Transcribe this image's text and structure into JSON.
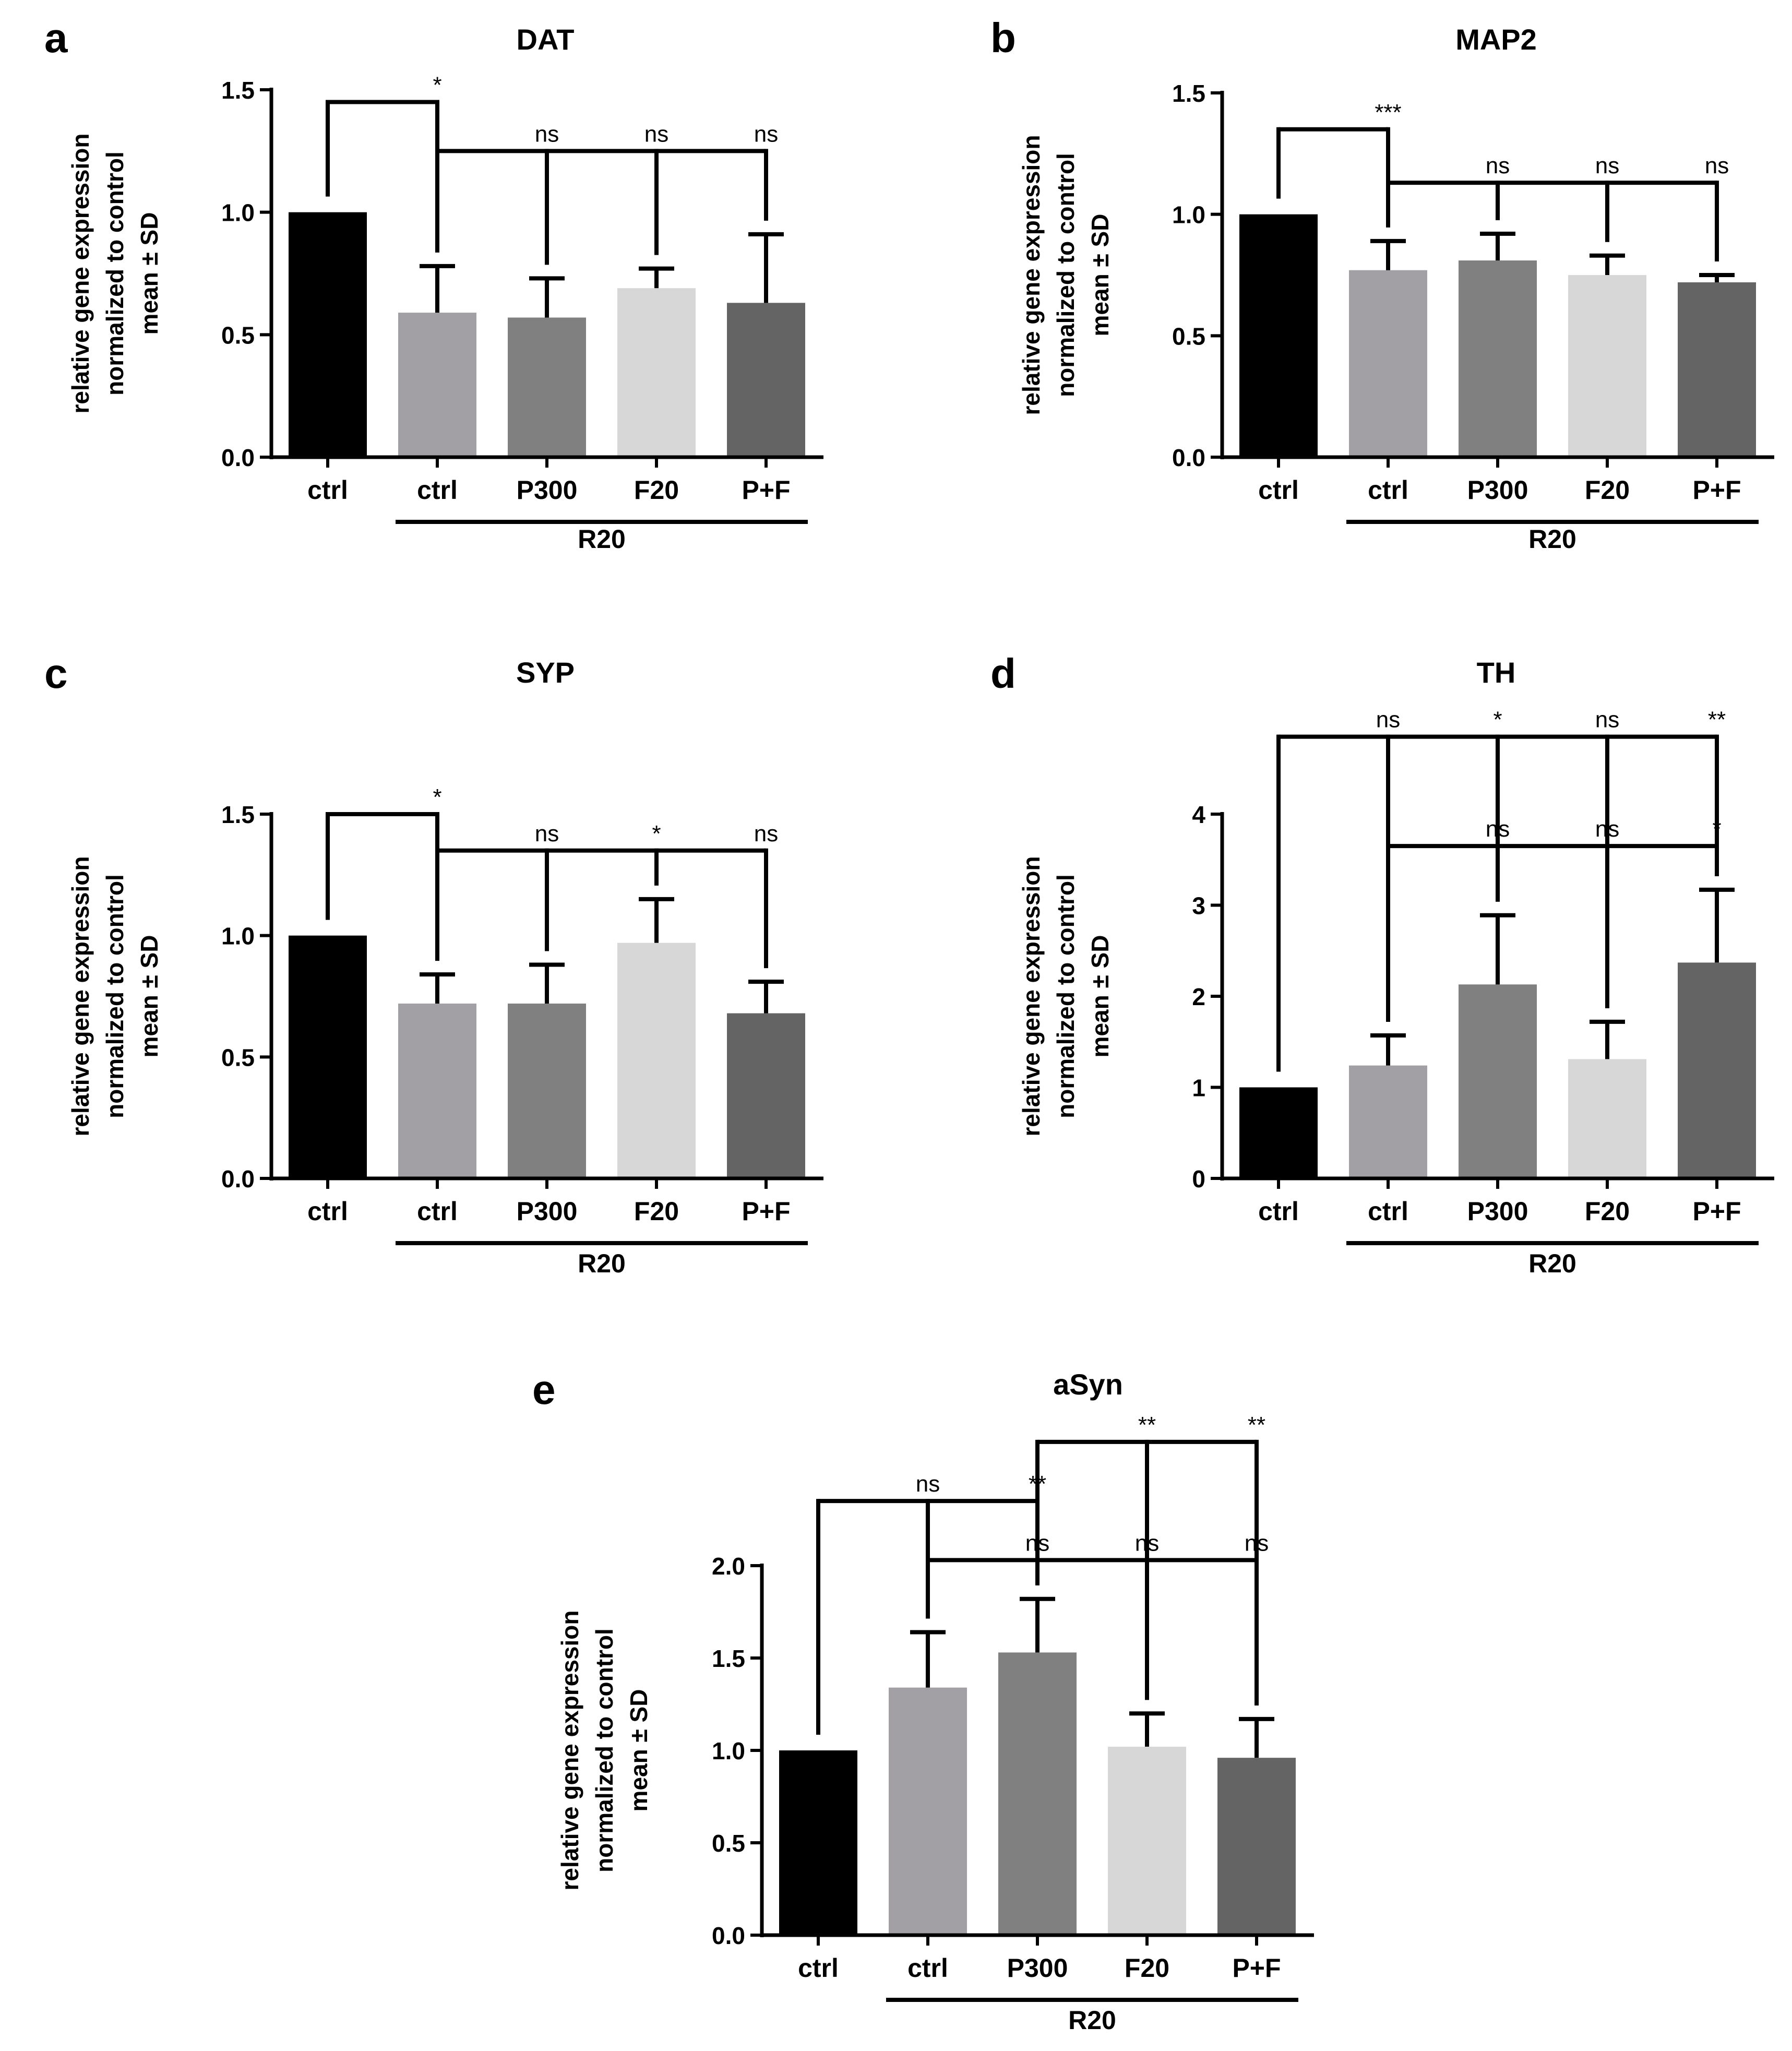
{
  "chart_data": [
    {
      "panel": "a",
      "type": "bar",
      "title": "DAT",
      "ylabel": [
        "relative gene expression",
        "normalized to control",
        "mean ± SD"
      ],
      "ylim": [
        0,
        1.5
      ],
      "yticks": [
        "0.0",
        "0.5",
        "1.0",
        "1.5"
      ],
      "ytick_values": [
        0,
        0.5,
        1.0,
        1.5
      ],
      "categories": [
        "ctrl",
        "ctrl",
        "P300",
        "F20",
        "P+F"
      ],
      "values": [
        1.0,
        0.59,
        0.57,
        0.69,
        0.63
      ],
      "sd": [
        0,
        0.19,
        0.16,
        0.08,
        0.28
      ],
      "colors": [
        "#000000",
        "#a2a0a5",
        "#808080",
        "#d7d7d7",
        "#646464"
      ],
      "group_label": "R20",
      "group_range": [
        1,
        4
      ],
      "comparisons": [
        {
          "ref": 0,
          "targets": [
            1
          ],
          "labels": [
            "*"
          ],
          "y": 1.45
        },
        {
          "ref": 1,
          "targets": [
            2,
            3,
            4
          ],
          "labels": [
            "ns",
            "ns",
            "ns"
          ],
          "y": 1.25
        }
      ]
    },
    {
      "panel": "b",
      "type": "bar",
      "title": "MAP2",
      "ylabel": [
        "relative gene expression",
        "normalized to control",
        "mean ± SD"
      ],
      "ylim": [
        0,
        1.5
      ],
      "yticks": [
        "0.0",
        "0.5",
        "1.0",
        "1.5"
      ],
      "ytick_values": [
        0,
        0.5,
        1.0,
        1.5
      ],
      "categories": [
        "ctrl",
        "ctrl",
        "P300",
        "F20",
        "P+F"
      ],
      "values": [
        1.0,
        0.77,
        0.81,
        0.75,
        0.72
      ],
      "sd": [
        0,
        0.12,
        0.11,
        0.08,
        0.03
      ],
      "colors": [
        "#000000",
        "#a2a0a5",
        "#808080",
        "#d7d7d7",
        "#646464"
      ],
      "group_label": "R20",
      "group_range": [
        1,
        4
      ],
      "comparisons": [
        {
          "ref": 0,
          "targets": [
            1
          ],
          "labels": [
            "***"
          ],
          "y": 1.35
        },
        {
          "ref": 1,
          "targets": [
            2,
            3,
            4
          ],
          "labels": [
            "ns",
            "ns",
            "ns"
          ],
          "y": 1.13
        }
      ]
    },
    {
      "panel": "c",
      "type": "bar",
      "title": "SYP",
      "ylabel": [
        "relative gene expression",
        "normalized to control",
        "mean ± SD"
      ],
      "ylim": [
        0,
        1.5
      ],
      "yticks": [
        "0.0",
        "0.5",
        "1.0",
        "1.5"
      ],
      "ytick_values": [
        0,
        0.5,
        1.0,
        1.5
      ],
      "categories": [
        "ctrl",
        "ctrl",
        "P300",
        "F20",
        "P+F"
      ],
      "values": [
        1.0,
        0.72,
        0.72,
        0.97,
        0.68
      ],
      "sd": [
        0,
        0.12,
        0.16,
        0.18,
        0.13
      ],
      "colors": [
        "#000000",
        "#a2a0a5",
        "#808080",
        "#d7d7d7",
        "#646464"
      ],
      "group_label": "R20",
      "group_range": [
        1,
        4
      ],
      "comparisons": [
        {
          "ref": 0,
          "targets": [
            1
          ],
          "labels": [
            "*"
          ],
          "y": 1.5
        },
        {
          "ref": 1,
          "targets": [
            2,
            3,
            4
          ],
          "labels": [
            "ns",
            "*",
            "ns"
          ],
          "y": 1.35
        }
      ]
    },
    {
      "panel": "d",
      "type": "bar",
      "title": "TH",
      "ylabel": [
        "relative gene expression",
        "normalized to control",
        "mean ± SD"
      ],
      "ylim": [
        0,
        4
      ],
      "yticks": [
        "0",
        "1",
        "2",
        "3",
        "4"
      ],
      "ytick_values": [
        0,
        1,
        2,
        3,
        4
      ],
      "categories": [
        "ctrl",
        "ctrl",
        "P300",
        "F20",
        "P+F"
      ],
      "values": [
        1.0,
        1.24,
        2.13,
        1.31,
        2.37
      ],
      "sd": [
        0,
        0.33,
        0.76,
        0.41,
        0.8
      ],
      "colors": [
        "#000000",
        "#a2a0a5",
        "#808080",
        "#d7d7d7",
        "#646464"
      ],
      "group_label": "R20",
      "group_range": [
        1,
        4
      ],
      "comparisons": [
        {
          "ref": 0,
          "targets": [
            1,
            2,
            3,
            4
          ],
          "labels": [
            "ns",
            "*",
            "ns",
            "**"
          ],
          "y": 4.85
        },
        {
          "ref": 1,
          "targets": [
            2,
            3,
            4
          ],
          "labels": [
            "ns",
            "ns",
            "*"
          ],
          "y": 3.65
        }
      ]
    },
    {
      "panel": "e",
      "type": "bar",
      "title": "aSyn",
      "ylabel": [
        "relative gene expression",
        "normalized to control",
        "mean ± SD"
      ],
      "ylim": [
        0,
        2.0
      ],
      "yticks": [
        "0.0",
        "0.5",
        "1.0",
        "1.5",
        "2.0"
      ],
      "ytick_values": [
        0,
        0.5,
        1.0,
        1.5,
        2.0
      ],
      "categories": [
        "ctrl",
        "ctrl",
        "P300",
        "F20",
        "P+F"
      ],
      "values": [
        1.0,
        1.34,
        1.53,
        1.02,
        0.96
      ],
      "sd": [
        0,
        0.3,
        0.29,
        0.18,
        0.21
      ],
      "colors": [
        "#000000",
        "#a2a0a5",
        "#808080",
        "#d7d7d7",
        "#646464"
      ],
      "group_label": "R20",
      "group_range": [
        1,
        4
      ],
      "comparisons": [
        {
          "ref": 2,
          "targets": [
            3,
            4
          ],
          "labels": [
            "**",
            "**"
          ],
          "y": 2.67
        },
        {
          "ref": 0,
          "targets": [
            1,
            2
          ],
          "labels": [
            "ns",
            "**"
          ],
          "y": 2.35
        },
        {
          "ref": 1,
          "targets": [
            2,
            3,
            4
          ],
          "labels": [
            "ns",
            "ns",
            "ns"
          ],
          "y": 2.03
        }
      ]
    }
  ]
}
